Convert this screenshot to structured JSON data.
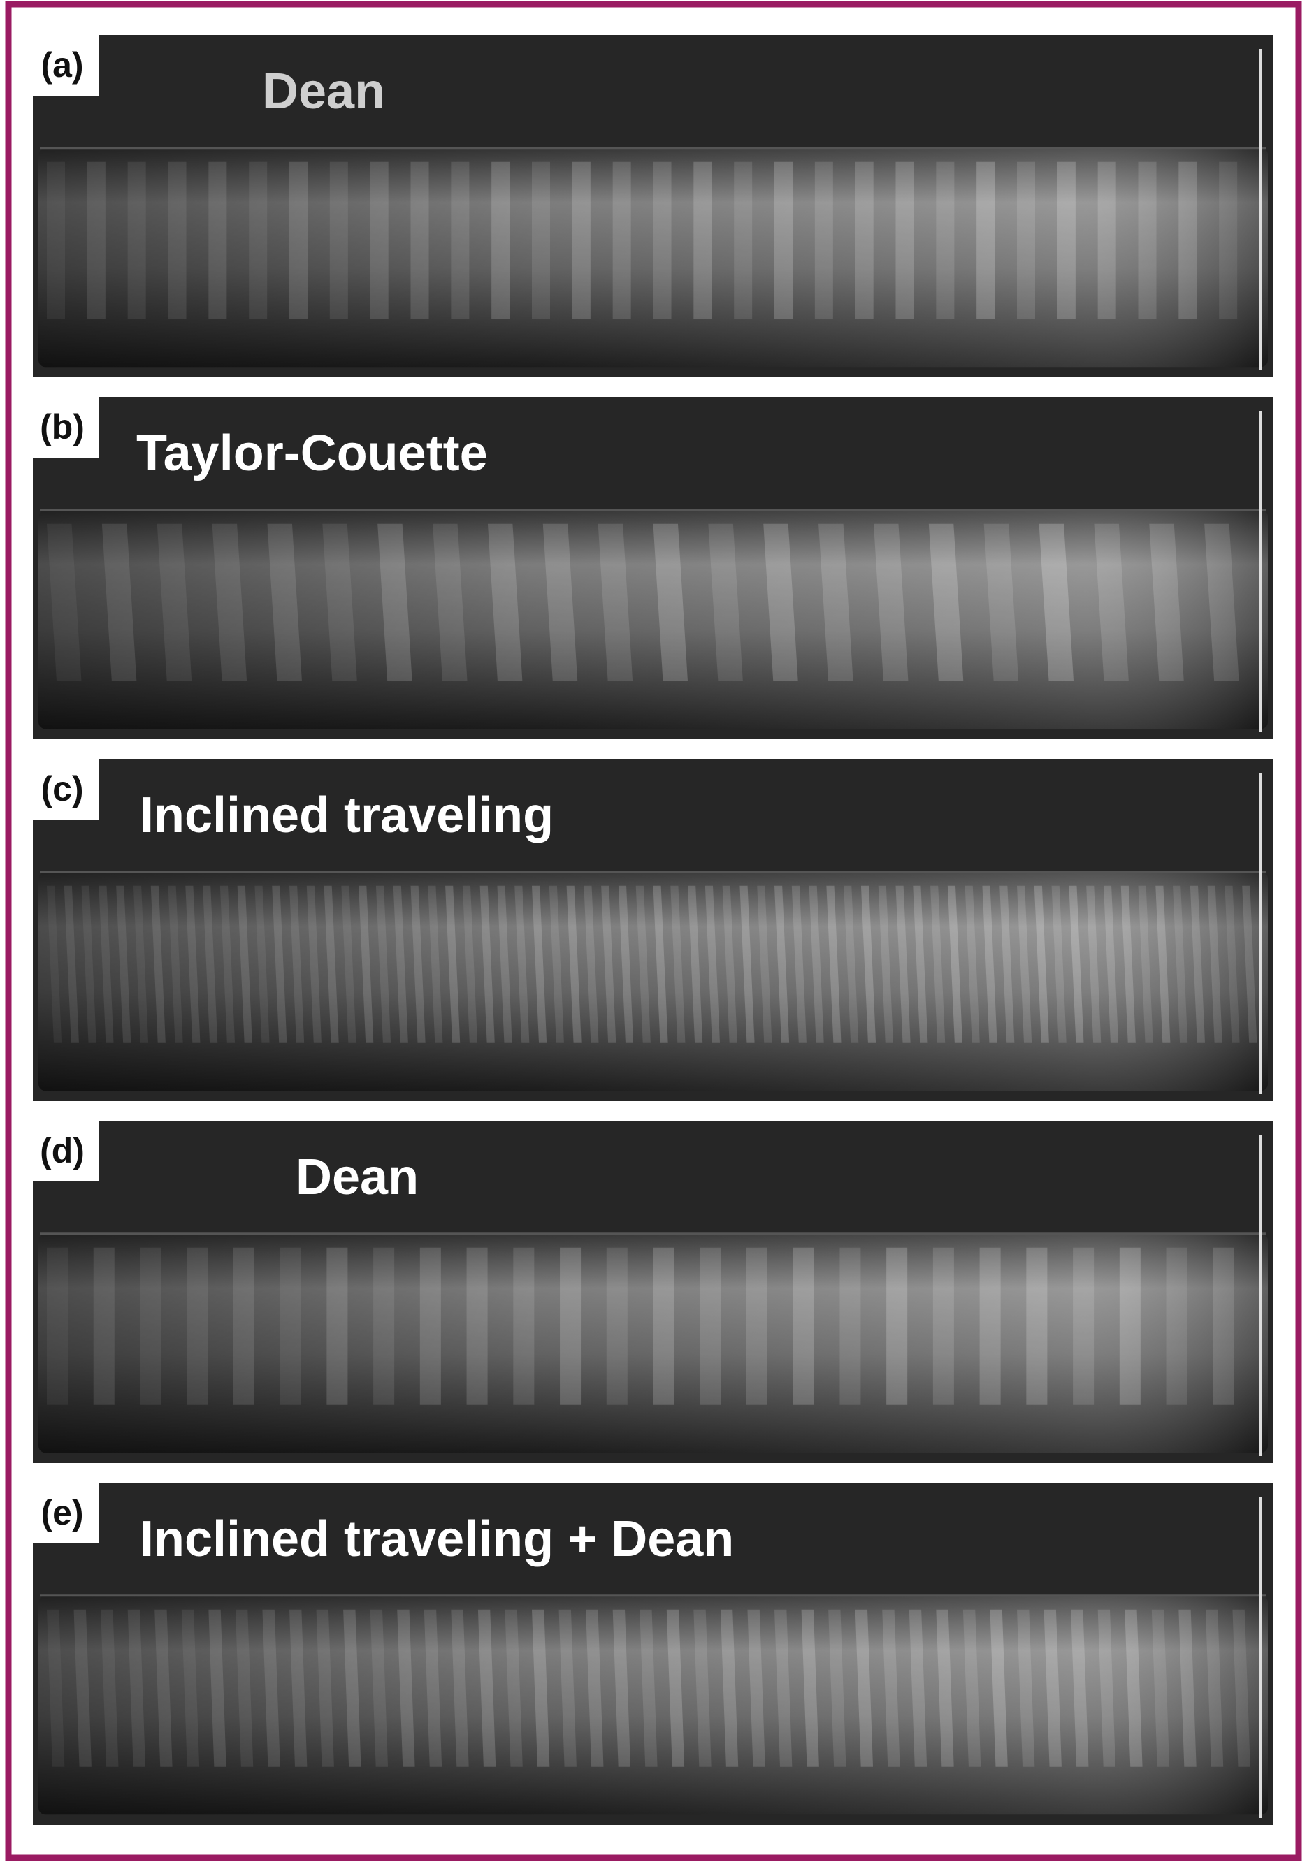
{
  "panels": [
    {
      "tag": "(a)",
      "label": "Dean"
    },
    {
      "tag": "(b)",
      "label": "Taylor-Couette"
    },
    {
      "tag": "(c)",
      "label": "Inclined traveling"
    },
    {
      "tag": "(d)",
      "label": "Dean"
    },
    {
      "tag": "(e)",
      "label": "Inclined traveling + Dean"
    }
  ]
}
